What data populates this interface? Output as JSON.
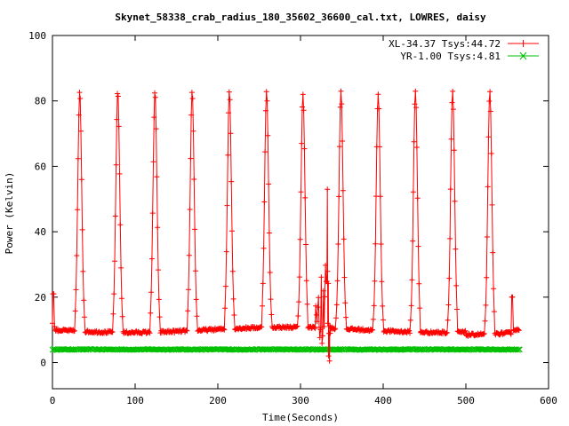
{
  "chart_data": {
    "type": "line",
    "title": "Skynet_58338_crab_radius_180_35602_36600_cal.txt, LOWRES, daisy",
    "xlabel": "Time(Seconds)",
    "ylabel": "Power (Kelvin)",
    "xlim": [
      0,
      600
    ],
    "ylim": [
      -8,
      100
    ],
    "x_ticks": [
      0,
      100,
      200,
      300,
      400,
      500,
      600
    ],
    "y_ticks": [
      0,
      20,
      40,
      60,
      80,
      100
    ],
    "x_tick_labels": [
      "0",
      "100",
      "200",
      "300",
      "400",
      "500",
      "600"
    ],
    "y_tick_labels": [
      "0",
      "20",
      "40",
      "60",
      "80",
      "100"
    ],
    "grid": false,
    "legend_position": "top-right",
    "baseline_x_range": [
      0,
      565
    ],
    "series": [
      {
        "name": "XL-34.37 Tsys:44.72",
        "color": "#ff0000",
        "marker": "plus",
        "peaks": [
          [
            33,
            83
          ],
          [
            79,
            83
          ],
          [
            124,
            83
          ],
          [
            169,
            83
          ],
          [
            214,
            83
          ],
          [
            259,
            83
          ],
          [
            303,
            82
          ],
          [
            349,
            83
          ],
          [
            394,
            82
          ],
          [
            439,
            83
          ],
          [
            484,
            83
          ],
          [
            529,
            83
          ]
        ],
        "start_value": 21,
        "end_value": 20,
        "end_x": 555,
        "disturbance": {
          "x_range": [
            318,
            336
          ],
          "max": 53,
          "min": 0
        }
      },
      {
        "name": "YR-1.00 Tsys:4.81",
        "color": "#00c000",
        "marker": "x",
        "value": 4,
        "x_range": [
          0,
          565
        ]
      }
    ]
  }
}
